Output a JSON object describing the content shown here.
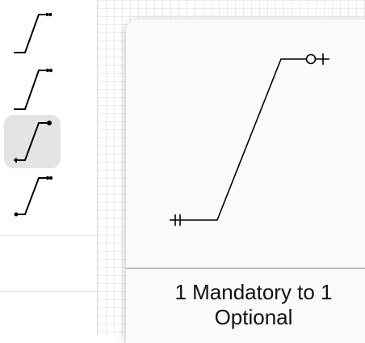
{
  "sidebar": {
    "items": [
      {
        "icon": "relation-one-mandatory-to-many-icon",
        "selected": false
      },
      {
        "icon": "relation-one-to-many-icon",
        "selected": false
      },
      {
        "icon": "relation-one-mandatory-to-one-optional-icon",
        "selected": true
      },
      {
        "icon": "relation-many-to-many-icon",
        "selected": false
      }
    ]
  },
  "preview": {
    "caption_line1": "1 Mandatory to 1",
    "caption_line2": "Optional"
  },
  "colors": {
    "selection_background": "#e4e3e5",
    "stroke": "#000000"
  }
}
